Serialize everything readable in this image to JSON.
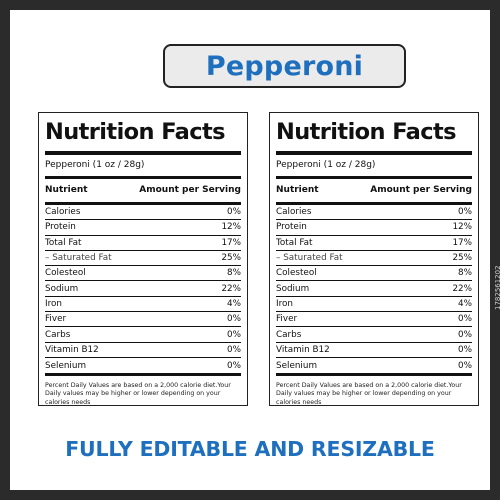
{
  "page_title": "Pepperoni",
  "labels": [
    {
      "heading": "Nutrition Facts",
      "serving": "Pepperoni (1 oz / 28g)",
      "col_nutrient": "Nutrient",
      "col_amount": "Amount per Serving",
      "rows": [
        {
          "name": "Calories",
          "value": "0%"
        },
        {
          "name": "Protein",
          "value": "12%"
        },
        {
          "name": "Total Fat",
          "value": "17%"
        },
        {
          "name": "– Saturated Fat",
          "value": "25%"
        },
        {
          "name": "Colesteol",
          "value": "8%"
        },
        {
          "name": "Sodium",
          "value": "22%"
        },
        {
          "name": "Iron",
          "value": "4%"
        },
        {
          "name": "Fiver",
          "value": "0%"
        },
        {
          "name": "Carbs",
          "value": "0%"
        },
        {
          "name": "Vitamin B12",
          "value": "0%"
        },
        {
          "name": "Selenium",
          "value": "0%"
        }
      ],
      "footnote": "Percent Daily Values are based on a 2,000 calorie diet.Your Daily values may be higher or lower depending on your calories needs"
    },
    {
      "heading": "Nutrition Facts",
      "serving": "Pepperoni (1 oz / 28g)",
      "col_nutrient": "Nutrient",
      "col_amount": "Amount per Serving",
      "rows": [
        {
          "name": "Calories",
          "value": "0%"
        },
        {
          "name": "Protein",
          "value": "12%"
        },
        {
          "name": "Total Fat",
          "value": "17%"
        },
        {
          "name": "– Saturated Fat",
          "value": "25%"
        },
        {
          "name": "Colesteol",
          "value": "8%"
        },
        {
          "name": "Sodium",
          "value": "22%"
        },
        {
          "name": "Iron",
          "value": "4%"
        },
        {
          "name": "Fiver",
          "value": "0%"
        },
        {
          "name": "Carbs",
          "value": "0%"
        },
        {
          "name": "Vitamin B12",
          "value": "0%"
        },
        {
          "name": "Selenium",
          "value": "0%"
        }
      ],
      "footnote": "Percent Daily Values are based on a 2,000 calorie diet.Your Daily values may be higher or lower depending on your calories needs"
    }
  ],
  "tagline": "FULLY EDITABLE AND RESIZABLE",
  "stock_id": "1782561202",
  "colors": {
    "accent_blue": "#1f6fbf",
    "border_dark": "#2b2b2b",
    "pill_bg": "#ebebeb"
  }
}
